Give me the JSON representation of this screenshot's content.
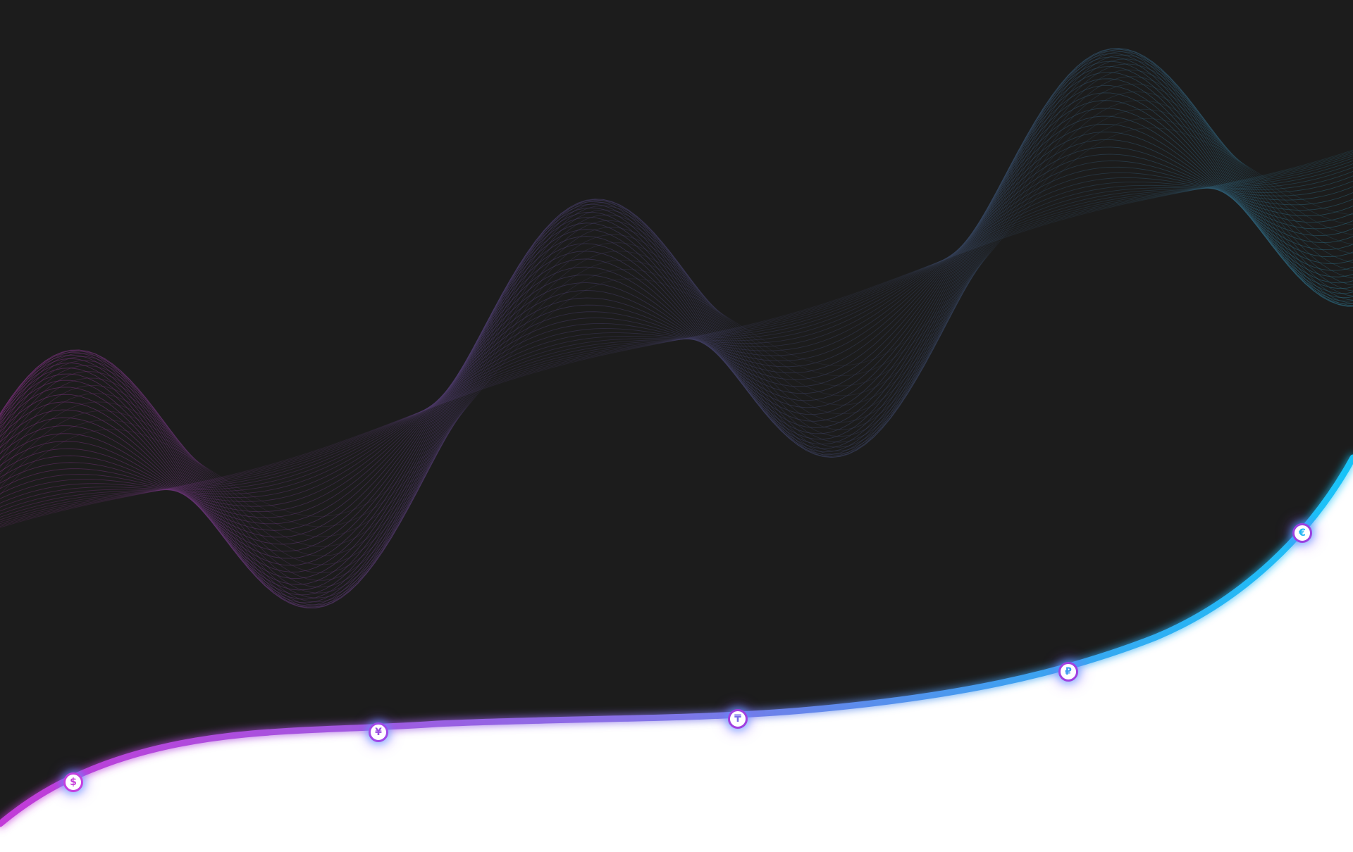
{
  "currency_markers": [
    {
      "symbol": "$",
      "icon": "dollar-icon",
      "color": "#c63fd8",
      "border": "#c440e0"
    },
    {
      "symbol": "¥",
      "icon": "yen-icon",
      "color": "#9a4fe0",
      "border": "#a048e8"
    },
    {
      "symbol": "₸",
      "icon": "tenge-icon",
      "color": "#7a6ee8",
      "border": "#a040e0"
    },
    {
      "symbol": "₽",
      "icon": "ruble-icon",
      "color": "#3f9cf0",
      "border": "#a040e0"
    },
    {
      "symbol": "€",
      "icon": "euro-icon",
      "color": "#1fb6f4",
      "border": "#9a40e0"
    }
  ],
  "colors": {
    "background": "#1c1c1c",
    "curve_start": "#c23ad8",
    "curve_mid": "#7a7ce8",
    "curve_end": "#18c4f8",
    "fill": "#ffffff"
  }
}
